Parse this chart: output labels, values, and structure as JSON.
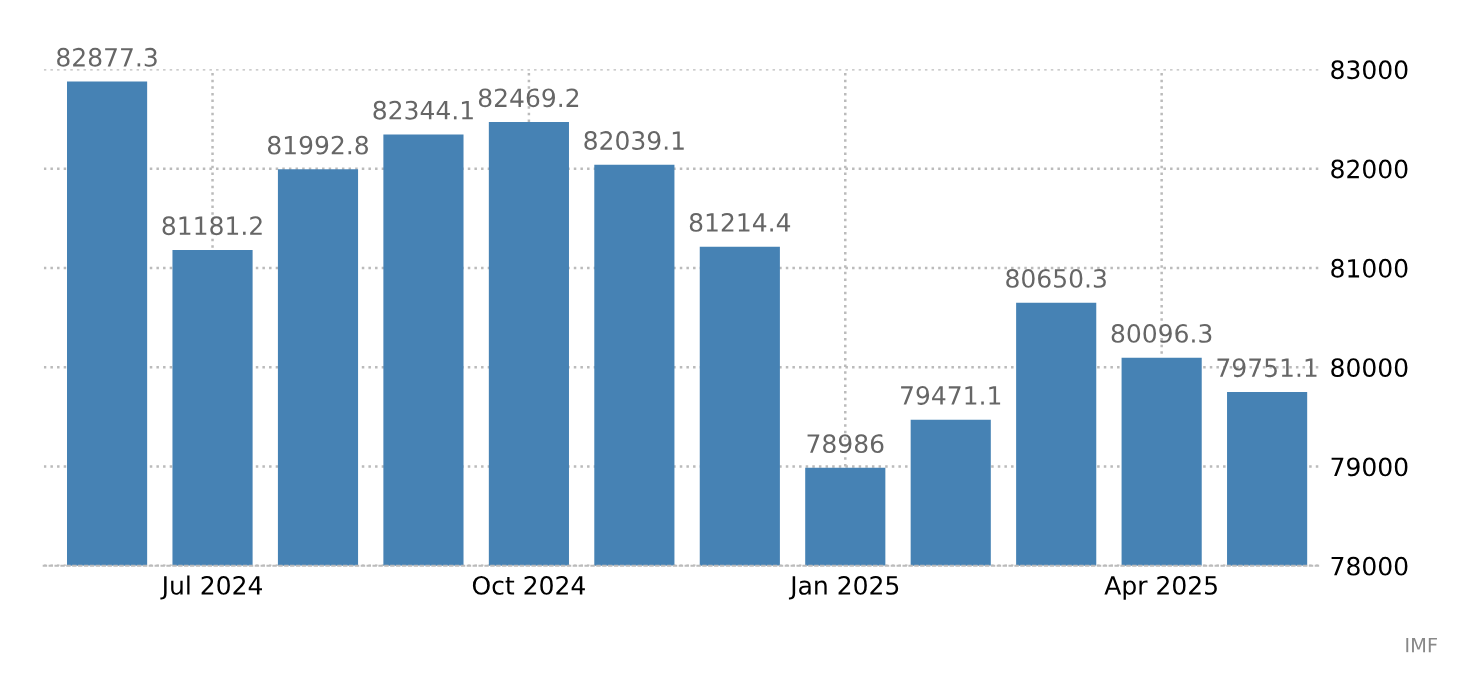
{
  "chart_data": {
    "type": "bar",
    "categories": [
      null,
      "Jul 2024",
      null,
      null,
      "Oct 2024",
      null,
      null,
      "Jan 2025",
      null,
      null,
      "Apr 2025",
      null
    ],
    "values": [
      82877.3,
      81181.2,
      81992.8,
      82344.1,
      82469.2,
      82039.1,
      81214.4,
      78986,
      79471.1,
      80650.3,
      80096.3,
      79751.1
    ],
    "color": "#4682b4",
    "ylim": [
      78000,
      83000
    ],
    "yticks": [
      78000,
      79000,
      80000,
      81000,
      82000,
      83000
    ],
    "grid": true,
    "data_labels": true,
    "annotations": [
      "IMF"
    ]
  }
}
